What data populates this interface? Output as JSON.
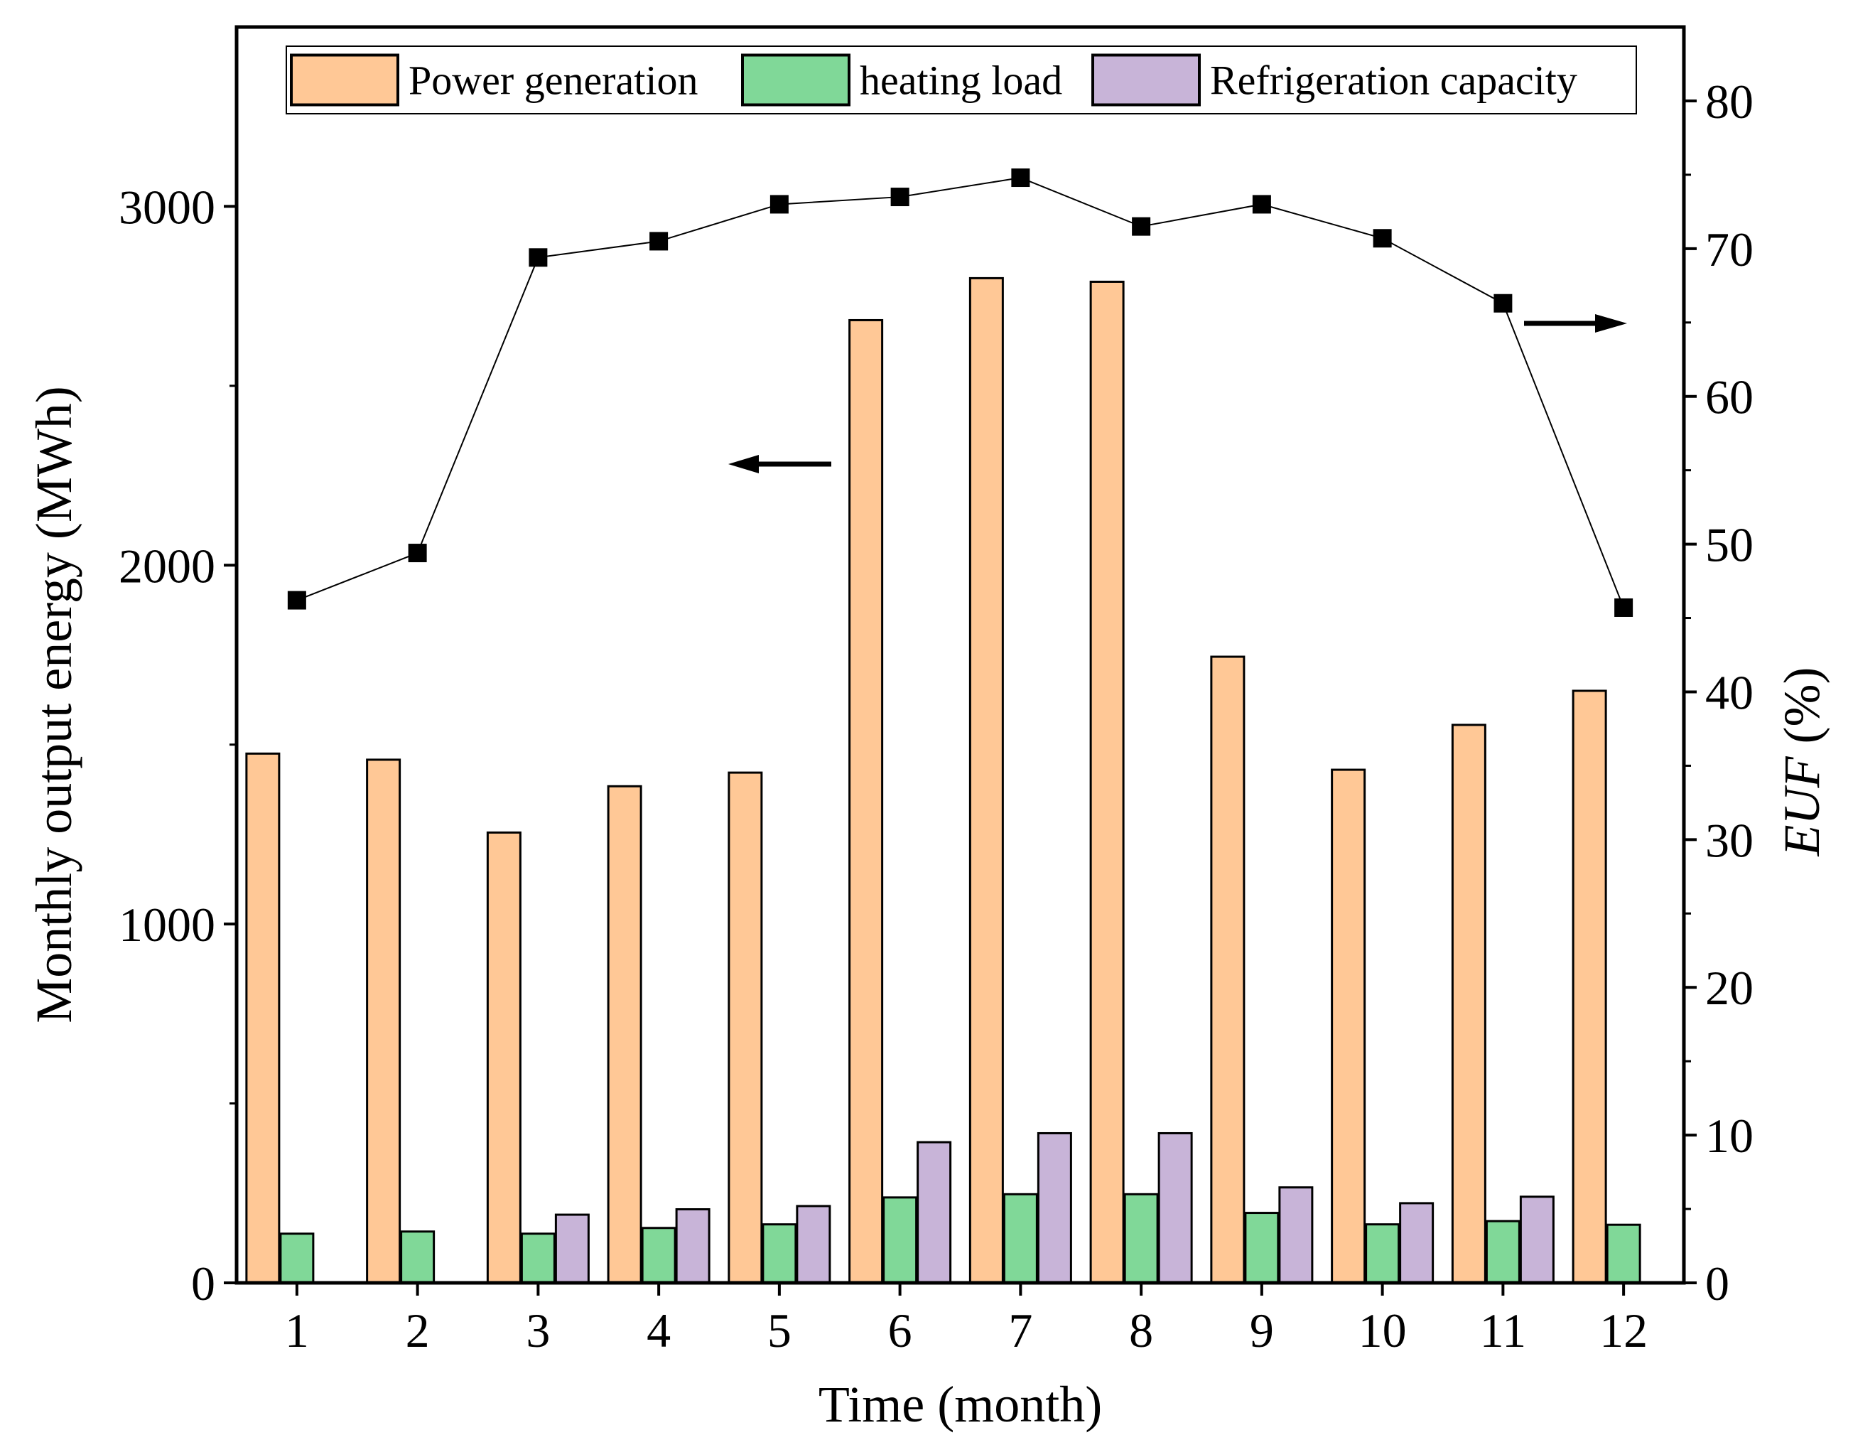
{
  "chart_data": {
    "type": "bar",
    "categories": [
      "1",
      "2",
      "3",
      "4",
      "5",
      "6",
      "7",
      "8",
      "9",
      "10",
      "11",
      "12"
    ],
    "xlabel": "Time (month)",
    "ylabel": "Monthly output energy (MWh)",
    "y2label": "EUF (%)",
    "ylim": [
      0,
      3500
    ],
    "y2lim": [
      0,
      85
    ],
    "yticks": [
      0,
      1000,
      2000,
      3000
    ],
    "y2ticks": [
      0,
      10,
      20,
      30,
      40,
      50,
      60,
      70,
      80
    ],
    "grid": false,
    "legend": "top",
    "series": [
      {
        "name": "Power generation",
        "type": "bar",
        "axis": "left",
        "color": "#FFC896",
        "values": [
          1475,
          1458,
          1255,
          1384,
          1422,
          2683,
          2800,
          2790,
          1745,
          1430,
          1555,
          1650
        ]
      },
      {
        "name": "heating load",
        "type": "bar",
        "axis": "left",
        "color": "#80D898",
        "values": [
          137,
          143,
          137,
          153,
          163,
          238,
          247,
          247,
          195,
          163,
          172,
          162
        ]
      },
      {
        "name": "Refrigeration capacity",
        "type": "bar",
        "axis": "left",
        "color": "#C8B4D8",
        "values": [
          0,
          0,
          190,
          205,
          214,
          392,
          417,
          417,
          266,
          222,
          240,
          0
        ]
      },
      {
        "name": "EUF",
        "type": "line",
        "axis": "right",
        "color": "#000000",
        "values": [
          46.2,
          49.4,
          69.4,
          70.5,
          73.0,
          73.5,
          74.8,
          71.5,
          73.0,
          70.7,
          66.3,
          45.7
        ]
      }
    ]
  }
}
